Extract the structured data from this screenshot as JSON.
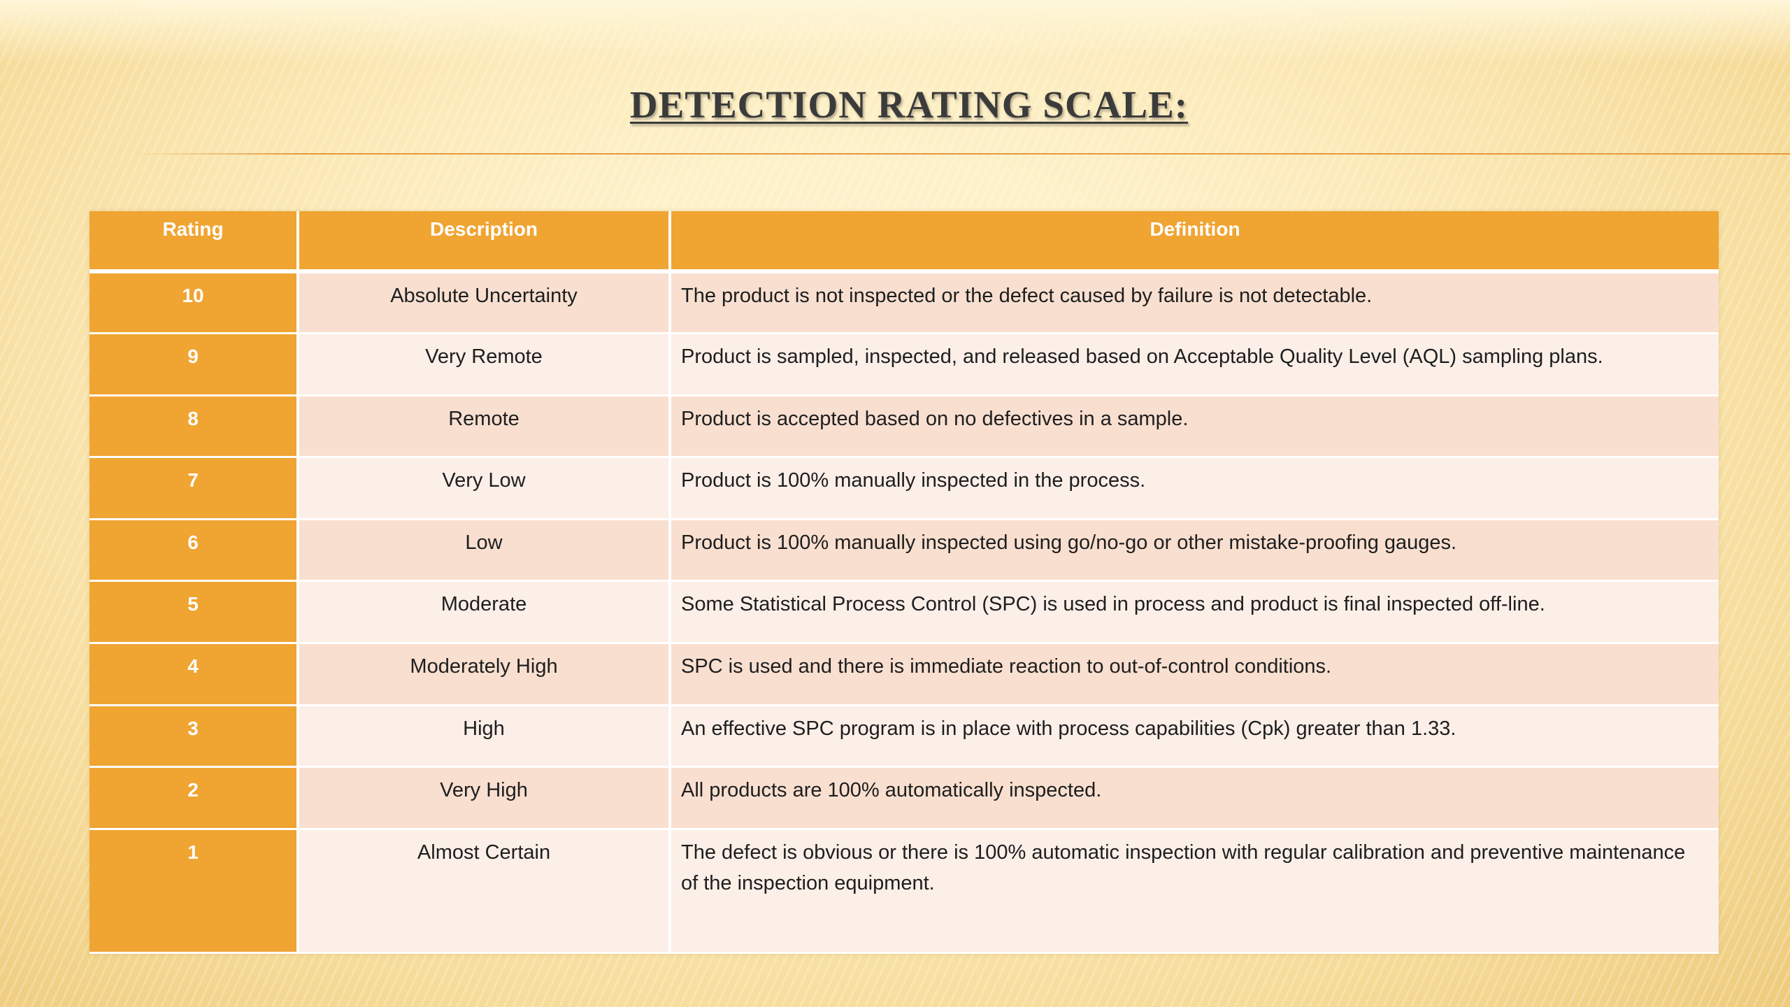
{
  "slide": {
    "title": "DETECTION RATING SCALE:"
  },
  "table": {
    "headers": [
      "Rating",
      "Description",
      "Definition"
    ],
    "rows": [
      {
        "rating": "10",
        "description": "Absolute Uncertainty",
        "definition": "The product is not inspected or the defect caused by failure is not detectable."
      },
      {
        "rating": "9",
        "description": "Very Remote",
        "definition": "Product is sampled, inspected, and released based on Acceptable Quality Level (AQL) sampling plans."
      },
      {
        "rating": "8",
        "description": "Remote",
        "definition": "Product is accepted based on no defectives in a sample."
      },
      {
        "rating": "7",
        "description": "Very Low",
        "definition": "Product is 100% manually inspected in the process."
      },
      {
        "rating": "6",
        "description": "Low",
        "definition": "Product is 100% manually inspected using go/no-go or other mistake-proofing gauges."
      },
      {
        "rating": "5",
        "description": "Moderate",
        "definition": "Some Statistical Process Control (SPC) is used in process and product is final inspected off-line."
      },
      {
        "rating": "4",
        "description": "Moderately High",
        "definition": "SPC is used and there is immediate reaction to out-of-control conditions."
      },
      {
        "rating": "3",
        "description": "High",
        "definition": "An effective SPC program is in place with process capabilities (Cpk) greater than 1.33."
      },
      {
        "rating": "2",
        "description": "Very High",
        "definition": "All products are 100% automatically inspected."
      },
      {
        "rating": "1",
        "description": "Almost Certain",
        "definition": "The defect is obvious or there is 100% automatic inspection with regular calibration and preventive maintenance of the inspection equipment."
      }
    ]
  },
  "colors": {
    "accent_orange": "#f0a432",
    "row_shade_dark": "#f8dfd0",
    "row_shade_light": "#fbefe8",
    "title_text": "#3b3b3b"
  }
}
